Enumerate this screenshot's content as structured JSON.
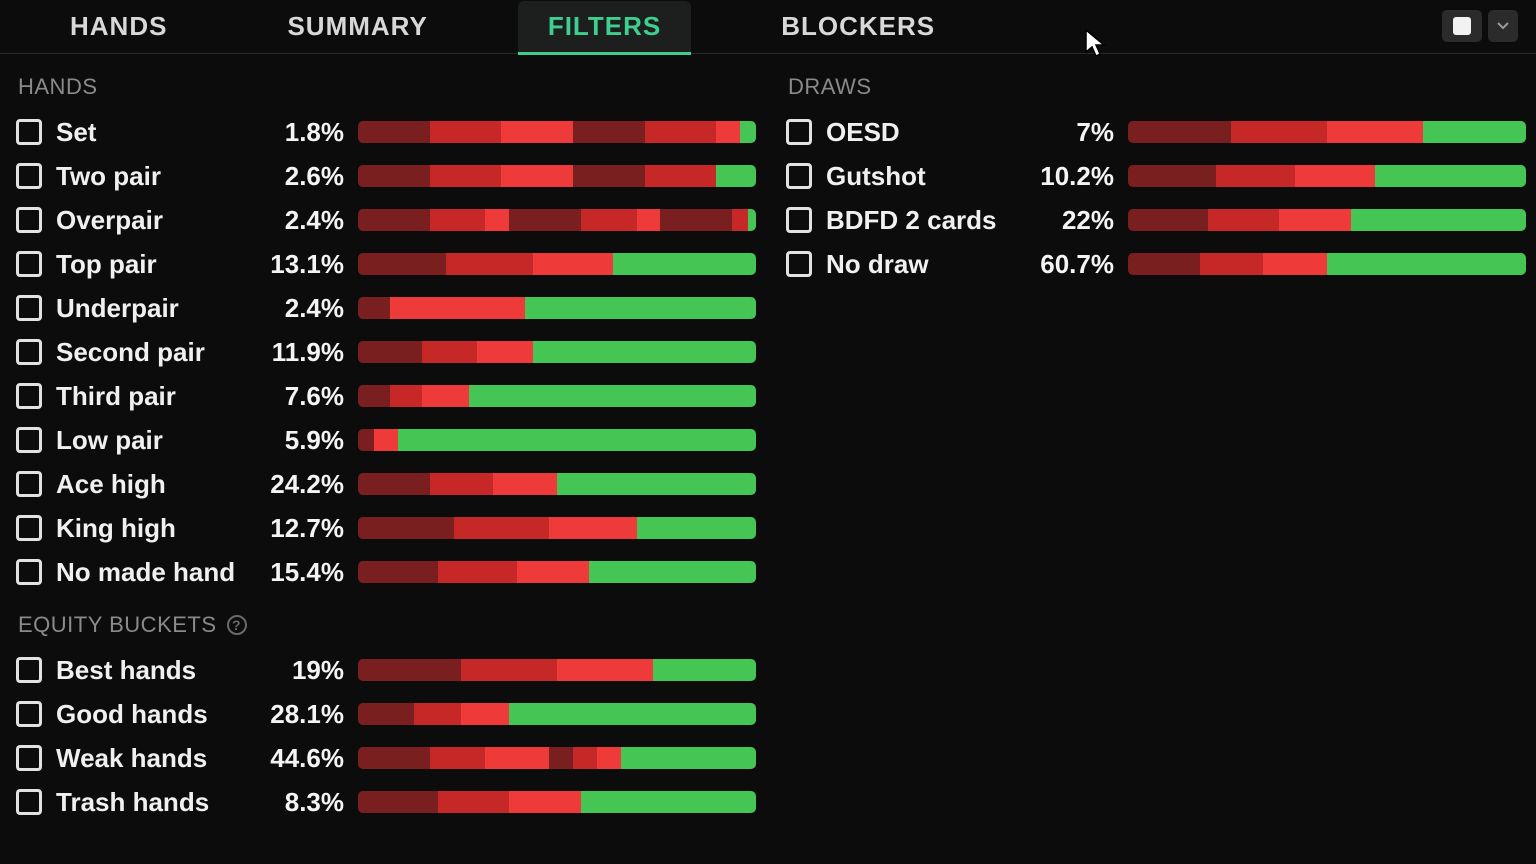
{
  "tabs": {
    "items": [
      "HANDS",
      "SUMMARY",
      "FILTERS",
      "BLOCKERS"
    ],
    "active_index": 2
  },
  "colors": {
    "dark_red": "#7a1f1f",
    "red": "#c62828",
    "bright_red": "#ef3a3a",
    "green": "#45c553",
    "bar_bg": "#1a1a1a"
  },
  "sections": {
    "hands": {
      "title": "HANDS",
      "rows": [
        {
          "label": "Set",
          "pct": "1.8%",
          "segs": [
            [
              "dark_red",
              18
            ],
            [
              "red",
              18
            ],
            [
              "bright_red",
              18
            ],
            [
              "dark_red",
              18
            ],
            [
              "red",
              18
            ],
            [
              "bright_red",
              6
            ],
            [
              "green",
              4
            ]
          ]
        },
        {
          "label": "Two pair",
          "pct": "2.6%",
          "segs": [
            [
              "dark_red",
              18
            ],
            [
              "red",
              18
            ],
            [
              "bright_red",
              18
            ],
            [
              "dark_red",
              18
            ],
            [
              "red",
              18
            ],
            [
              "green",
              10
            ]
          ]
        },
        {
          "label": "Overpair",
          "pct": "2.4%",
          "segs": [
            [
              "dark_red",
              18
            ],
            [
              "red",
              14
            ],
            [
              "bright_red",
              6
            ],
            [
              "dark_red",
              18
            ],
            [
              "red",
              14
            ],
            [
              "bright_red",
              6
            ],
            [
              "dark_red",
              18
            ],
            [
              "red",
              4
            ],
            [
              "green",
              2
            ]
          ]
        },
        {
          "label": "Top pair",
          "pct": "13.1%",
          "segs": [
            [
              "dark_red",
              22
            ],
            [
              "red",
              22
            ],
            [
              "bright_red",
              20
            ],
            [
              "green",
              36
            ]
          ]
        },
        {
          "label": "Underpair",
          "pct": "2.4%",
          "segs": [
            [
              "dark_red",
              8
            ],
            [
              "bright_red",
              34
            ],
            [
              "green",
              58
            ]
          ]
        },
        {
          "label": "Second pair",
          "pct": "11.9%",
          "segs": [
            [
              "dark_red",
              16
            ],
            [
              "red",
              14
            ],
            [
              "bright_red",
              14
            ],
            [
              "green",
              56
            ]
          ]
        },
        {
          "label": "Third pair",
          "pct": "7.6%",
          "segs": [
            [
              "dark_red",
              8
            ],
            [
              "red",
              8
            ],
            [
              "bright_red",
              12
            ],
            [
              "green",
              72
            ]
          ]
        },
        {
          "label": "Low pair",
          "pct": "5.9%",
          "segs": [
            [
              "dark_red",
              4
            ],
            [
              "bright_red",
              6
            ],
            [
              "green",
              90
            ]
          ]
        },
        {
          "label": "Ace high",
          "pct": "24.2%",
          "segs": [
            [
              "dark_red",
              18
            ],
            [
              "red",
              16
            ],
            [
              "bright_red",
              16
            ],
            [
              "green",
              50
            ]
          ]
        },
        {
          "label": "King high",
          "pct": "12.7%",
          "segs": [
            [
              "dark_red",
              24
            ],
            [
              "red",
              24
            ],
            [
              "bright_red",
              22
            ],
            [
              "green",
              30
            ]
          ]
        },
        {
          "label": "No made hand",
          "pct": "15.4%",
          "segs": [
            [
              "dark_red",
              20
            ],
            [
              "red",
              20
            ],
            [
              "bright_red",
              18
            ],
            [
              "green",
              42
            ]
          ]
        }
      ]
    },
    "equity": {
      "title": "EQUITY BUCKETS",
      "has_help": true,
      "rows": [
        {
          "label": "Best hands",
          "pct": "19%",
          "segs": [
            [
              "dark_red",
              26
            ],
            [
              "red",
              24
            ],
            [
              "bright_red",
              24
            ],
            [
              "green",
              26
            ]
          ]
        },
        {
          "label": "Good hands",
          "pct": "28.1%",
          "segs": [
            [
              "dark_red",
              14
            ],
            [
              "red",
              12
            ],
            [
              "bright_red",
              12
            ],
            [
              "green",
              62
            ]
          ]
        },
        {
          "label": "Weak hands",
          "pct": "44.6%",
          "segs": [
            [
              "dark_red",
              18
            ],
            [
              "red",
              14
            ],
            [
              "bright_red",
              16
            ],
            [
              "dark_red",
              6
            ],
            [
              "red",
              6
            ],
            [
              "bright_red",
              6
            ],
            [
              "green",
              34
            ]
          ]
        },
        {
          "label": "Trash hands",
          "pct": "8.3%",
          "segs": [
            [
              "dark_red",
              20
            ],
            [
              "red",
              18
            ],
            [
              "bright_red",
              18
            ],
            [
              "green",
              44
            ]
          ]
        }
      ]
    },
    "draws": {
      "title": "DRAWS",
      "rows": [
        {
          "label": "OESD",
          "pct": "7%",
          "segs": [
            [
              "dark_red",
              26
            ],
            [
              "red",
              24
            ],
            [
              "bright_red",
              24
            ],
            [
              "green",
              26
            ]
          ]
        },
        {
          "label": "Gutshot",
          "pct": "10.2%",
          "segs": [
            [
              "dark_red",
              22
            ],
            [
              "red",
              20
            ],
            [
              "bright_red",
              20
            ],
            [
              "green",
              38
            ]
          ]
        },
        {
          "label": "BDFD 2 cards",
          "pct": "22%",
          "segs": [
            [
              "dark_red",
              20
            ],
            [
              "red",
              18
            ],
            [
              "bright_red",
              18
            ],
            [
              "green",
              44
            ]
          ]
        },
        {
          "label": "No draw",
          "pct": "60.7%",
          "segs": [
            [
              "dark_red",
              18
            ],
            [
              "red",
              16
            ],
            [
              "bright_red",
              16
            ],
            [
              "green",
              50
            ]
          ]
        }
      ]
    }
  }
}
